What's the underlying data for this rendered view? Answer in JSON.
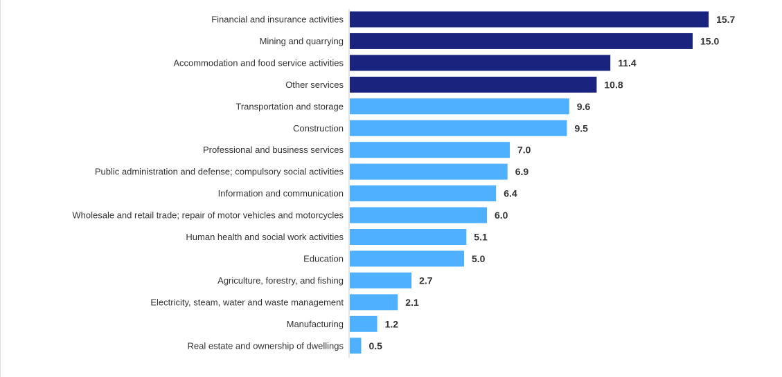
{
  "colors": {
    "highlight_bar": "#1a237e",
    "regular_bar": "#4fb0ff",
    "label_text": "#333333",
    "axis_line": "#c8c8c8"
  },
  "chart_data": {
    "type": "bar",
    "orientation": "horizontal",
    "title": "",
    "xlabel": "",
    "ylabel": "",
    "grid": false,
    "xlim": [
      0,
      16.5
    ],
    "categories": [
      "Financial and insurance activities",
      "Mining and quarrying",
      "Accommodation and food service activities",
      "Other services",
      "Transportation and storage",
      "Construction",
      "Professional and business services",
      "Public administration and defense; compulsory social activities",
      "Information and communication",
      "Wholesale and retail trade; repair of motor vehicles and motorcycles",
      "Human health and social work activities",
      "Education",
      "Agriculture, forestry, and fishing",
      "Electricity, steam, water and waste management",
      "Manufacturing",
      "Real estate and ownership of dwellings"
    ],
    "values": [
      15.7,
      15.0,
      11.4,
      10.8,
      9.6,
      9.5,
      7.0,
      6.9,
      6.4,
      6.0,
      5.1,
      5.0,
      2.7,
      2.1,
      1.2,
      0.5
    ],
    "value_labels": [
      "15.7",
      "15.0",
      "11.4",
      "10.8",
      "9.6",
      "9.5",
      "7.0",
      "6.9",
      "6.4",
      "6.0",
      "5.1",
      "5.0",
      "2.7",
      "2.1",
      "1.2",
      "0.5"
    ],
    "highlighted": [
      true,
      true,
      true,
      true,
      false,
      false,
      false,
      false,
      false,
      false,
      false,
      false,
      false,
      false,
      false,
      false
    ]
  }
}
